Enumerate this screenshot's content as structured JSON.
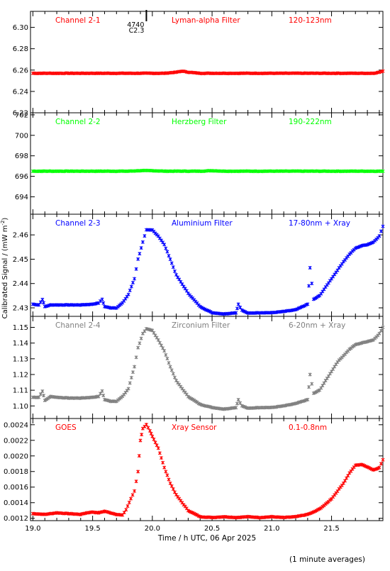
{
  "page": {
    "xlabel": "Time / h UTC, 06 Apr 2025",
    "ylabel": "Calibrated Signal / (mW m",
    "ylabel_sup": "-2",
    "ylabel_close": ")",
    "footnote": "(1 minute averages)",
    "event": {
      "x": 19.95,
      "number": "4740",
      "class": "C2.3"
    }
  },
  "chart_data": [
    {
      "type": "scatter",
      "channel": "Channel 2-1",
      "filter": "Lyman-alpha Filter",
      "band": "120-123nm",
      "color": "#ff0000",
      "xlim": [
        18.98,
        21.93
      ],
      "ylim": [
        6.22,
        6.315
      ],
      "yticks": [
        6.22,
        6.24,
        6.26,
        6.28,
        6.3
      ],
      "yticklabels": [
        "6.22",
        "6.24",
        "6.26",
        "6.28",
        "6.30"
      ],
      "grid": false,
      "x": [
        19.0,
        19.1,
        19.2,
        19.3,
        19.4,
        19.5,
        19.6,
        19.7,
        19.8,
        19.9,
        20.0,
        20.1,
        20.2,
        20.25,
        20.3,
        20.4,
        20.5,
        20.6,
        20.7,
        20.8,
        20.9,
        21.0,
        21.1,
        21.2,
        21.3,
        21.4,
        21.5,
        21.6,
        21.7,
        21.8,
        21.85,
        21.9,
        21.93
      ],
      "y": [
        6.257,
        6.257,
        6.257,
        6.257,
        6.257,
        6.257,
        6.257,
        6.257,
        6.257,
        6.257,
        6.257,
        6.257,
        6.258,
        6.259,
        6.258,
        6.257,
        6.257,
        6.257,
        6.257,
        6.257,
        6.257,
        6.257,
        6.257,
        6.257,
        6.257,
        6.257,
        6.257,
        6.257,
        6.257,
        6.257,
        6.257,
        6.258,
        6.259
      ]
    },
    {
      "type": "scatter",
      "channel": "Channel 2-2",
      "filter": "Herzberg Filter",
      "band": "190-222nm",
      "color": "#00ff00",
      "xlim": [
        18.98,
        21.93
      ],
      "ylim": [
        692.3,
        702.2
      ],
      "yticks": [
        694,
        696,
        698,
        700,
        702
      ],
      "yticklabels": [
        "694",
        "696",
        "698",
        "700",
        "702"
      ],
      "grid": false,
      "x": [
        19.0,
        19.1,
        19.2,
        19.3,
        19.4,
        19.5,
        19.6,
        19.7,
        19.8,
        19.9,
        20.0,
        20.1,
        20.2,
        20.3,
        20.4,
        20.5,
        20.6,
        20.7,
        20.8,
        20.9,
        21.0,
        21.1,
        21.2,
        21.3,
        21.4,
        21.5,
        21.6,
        21.7,
        21.8,
        21.9,
        21.93
      ],
      "y": [
        696.5,
        696.5,
        696.5,
        696.5,
        696.5,
        696.5,
        696.5,
        696.5,
        696.5,
        696.55,
        696.55,
        696.5,
        696.5,
        696.5,
        696.5,
        696.55,
        696.5,
        696.5,
        696.5,
        696.5,
        696.5,
        696.5,
        696.5,
        696.5,
        696.5,
        696.5,
        696.5,
        696.5,
        696.5,
        696.5,
        696.5
      ]
    },
    {
      "type": "scatter",
      "channel": "Channel 2-3",
      "filter": "Aluminium Filter",
      "band": "17-80nm + Xray",
      "color": "#0000ff",
      "xlim": [
        18.98,
        21.93
      ],
      "ylim": [
        2.4265,
        2.4685
      ],
      "yticks": [
        2.43,
        2.44,
        2.45,
        2.46
      ],
      "yticklabels": [
        "2.43",
        "2.44",
        "2.45",
        "2.46"
      ],
      "grid": false,
      "x": [
        19.0,
        19.05,
        19.08,
        19.1,
        19.15,
        19.2,
        19.3,
        19.4,
        19.5,
        19.55,
        19.58,
        19.6,
        19.65,
        19.7,
        19.75,
        19.8,
        19.85,
        19.88,
        19.92,
        19.95,
        20.0,
        20.05,
        20.1,
        20.15,
        20.2,
        20.3,
        20.4,
        20.5,
        20.6,
        20.7,
        20.72,
        20.75,
        20.8,
        20.9,
        21.0,
        21.1,
        21.2,
        21.3,
        21.32,
        21.35,
        21.4,
        21.45,
        21.5,
        21.55,
        21.6,
        21.65,
        21.7,
        21.75,
        21.8,
        21.85,
        21.9,
        21.93
      ],
      "y": [
        2.4315,
        2.4312,
        2.4335,
        2.4305,
        2.4312,
        2.4312,
        2.4312,
        2.4312,
        2.4315,
        2.432,
        2.4335,
        2.4305,
        2.43,
        2.43,
        2.432,
        2.4355,
        2.442,
        2.45,
        2.457,
        2.462,
        2.462,
        2.4595,
        2.456,
        2.45,
        2.4435,
        2.436,
        2.4305,
        2.428,
        2.4275,
        2.428,
        2.4315,
        2.429,
        2.4278,
        2.428,
        2.428,
        2.4285,
        2.4292,
        2.4315,
        2.4465,
        2.4335,
        2.435,
        2.4385,
        2.442,
        2.4455,
        2.449,
        2.452,
        2.4545,
        2.4555,
        2.456,
        2.457,
        2.4595,
        2.4635
      ]
    },
    {
      "type": "scatter",
      "channel": "Channel 2-4",
      "filter": "Zirconium Filter",
      "band": "6-20nm + Xray",
      "color": "#7f7f7f",
      "xlim": [
        18.98,
        21.93
      ],
      "ylim": [
        1.092,
        1.157
      ],
      "yticks": [
        1.1,
        1.11,
        1.12,
        1.13,
        1.14,
        1.15
      ],
      "yticklabels": [
        "1.10",
        "1.11",
        "1.12",
        "1.13",
        "1.14",
        "1.15"
      ],
      "grid": false,
      "x": [
        19.0,
        19.05,
        19.08,
        19.1,
        19.15,
        19.2,
        19.3,
        19.4,
        19.5,
        19.55,
        19.58,
        19.6,
        19.65,
        19.7,
        19.75,
        19.8,
        19.85,
        19.88,
        19.92,
        19.95,
        20.0,
        20.05,
        20.1,
        20.15,
        20.2,
        20.3,
        20.4,
        20.5,
        20.6,
        20.7,
        20.72,
        20.75,
        20.8,
        20.9,
        21.0,
        21.1,
        21.2,
        21.3,
        21.32,
        21.35,
        21.4,
        21.45,
        21.5,
        21.55,
        21.6,
        21.65,
        21.7,
        21.75,
        21.8,
        21.85,
        21.9,
        21.93
      ],
      "y": [
        1.1055,
        1.1055,
        1.1095,
        1.1035,
        1.106,
        1.1055,
        1.105,
        1.105,
        1.1055,
        1.106,
        1.1095,
        1.104,
        1.103,
        1.103,
        1.106,
        1.111,
        1.125,
        1.137,
        1.146,
        1.149,
        1.148,
        1.142,
        1.135,
        1.125,
        1.116,
        1.106,
        1.101,
        1.099,
        1.098,
        1.099,
        1.104,
        1.1,
        1.0985,
        1.099,
        1.099,
        1.1,
        1.1015,
        1.104,
        1.12,
        1.108,
        1.11,
        1.116,
        1.122,
        1.128,
        1.132,
        1.136,
        1.139,
        1.14,
        1.141,
        1.142,
        1.146,
        1.15
      ]
    },
    {
      "type": "scatter",
      "channel": "GOES",
      "filter": "Xray Sensor",
      "band": "0.1-0.8nm",
      "color": "#ff0000",
      "xlim": [
        18.98,
        21.93
      ],
      "ylim": [
        0.00117,
        0.00248
      ],
      "yticks": [
        0.0012,
        0.0014,
        0.0016,
        0.0018,
        0.002,
        0.0022,
        0.0024
      ],
      "yticklabels": [
        "0.0012",
        "0.0014",
        "0.0016",
        "0.0018",
        "0.0020",
        "0.0022",
        "0.0024"
      ],
      "grid": false,
      "x": [
        19.0,
        19.1,
        19.2,
        19.3,
        19.4,
        19.45,
        19.5,
        19.55,
        19.6,
        19.65,
        19.7,
        19.75,
        19.78,
        19.82,
        19.85,
        19.88,
        19.9,
        19.92,
        19.95,
        19.98,
        20.0,
        20.05,
        20.1,
        20.15,
        20.2,
        20.25,
        20.3,
        20.4,
        20.5,
        20.6,
        20.7,
        20.8,
        20.9,
        21.0,
        21.1,
        21.2,
        21.3,
        21.35,
        21.4,
        21.45,
        21.5,
        21.55,
        21.6,
        21.65,
        21.7,
        21.75,
        21.8,
        21.85,
        21.9,
        21.93
      ],
      "y": [
        0.00126,
        0.00125,
        0.00127,
        0.00126,
        0.00125,
        0.00127,
        0.00128,
        0.00127,
        0.00129,
        0.00127,
        0.00125,
        0.00124,
        0.00131,
        0.00145,
        0.00155,
        0.0018,
        0.0022,
        0.00235,
        0.0024,
        0.00232,
        0.00225,
        0.0021,
        0.00185,
        0.00165,
        0.0015,
        0.0014,
        0.0013,
        0.00122,
        0.00121,
        0.00122,
        0.00121,
        0.00122,
        0.00121,
        0.00122,
        0.00121,
        0.00122,
        0.00125,
        0.00128,
        0.00132,
        0.00138,
        0.00145,
        0.00155,
        0.00165,
        0.00178,
        0.00188,
        0.00189,
        0.00186,
        0.00182,
        0.00185,
        0.00195
      ]
    }
  ],
  "xaxis": {
    "ticks": [
      19.0,
      19.5,
      20.0,
      20.5,
      21.0,
      21.5
    ],
    "ticklabels": [
      "19.0",
      "19.5",
      "20.0",
      "20.5",
      "21.0",
      "21.5"
    ]
  }
}
